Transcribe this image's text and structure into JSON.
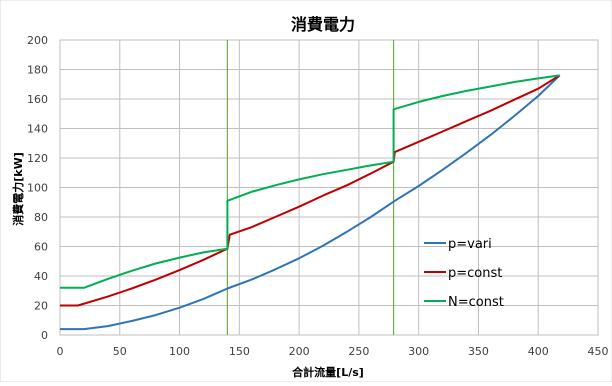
{
  "chart_data": {
    "type": "line",
    "title": "消費電力",
    "xlabel": "合計流量[L/s]",
    "ylabel": "消費電力[kW]",
    "xlim": [
      0,
      450
    ],
    "ylim": [
      0,
      200
    ],
    "xticks": [
      0,
      50,
      100,
      150,
      200,
      250,
      300,
      350,
      400,
      450
    ],
    "yticks": [
      0,
      20,
      40,
      60,
      80,
      100,
      120,
      140,
      160,
      180,
      200
    ],
    "grid": true,
    "legend_position": "right, inside plot",
    "vertical_lines": [
      {
        "x": 140,
        "color": "#70ad47"
      },
      {
        "x": 279,
        "color": "#70ad47"
      }
    ],
    "series": [
      {
        "name": "p=vari",
        "color": "#2e75b6",
        "x": [
          0,
          20,
          40,
          60,
          80,
          100,
          120,
          140,
          160,
          180,
          200,
          220,
          240,
          260,
          280,
          300,
          320,
          340,
          360,
          380,
          400,
          418
        ],
        "y": [
          4,
          4,
          6,
          9.5,
          13.5,
          18.5,
          24.5,
          31.5,
          37.5,
          44.5,
          52,
          60.5,
          70,
          80,
          91,
          101,
          112,
          123.5,
          135.5,
          148.5,
          162,
          176
        ]
      },
      {
        "name": "p=const",
        "color": "#c00000",
        "x": [
          0,
          15,
          15,
          40,
          60,
          80,
          100,
          120,
          140,
          140,
          142,
          160,
          180,
          200,
          220,
          240,
          260,
          279,
          279,
          280,
          300,
          320,
          340,
          360,
          380,
          400,
          418
        ],
        "y": [
          20,
          20,
          20,
          26,
          31.5,
          37.5,
          44,
          51,
          58.5,
          58.5,
          68,
          73,
          80,
          87,
          94.5,
          101.5,
          109.5,
          117.5,
          117.5,
          124,
          131,
          138,
          145,
          152,
          159.5,
          167,
          176
        ]
      },
      {
        "name": "N=const",
        "color": "#00b050",
        "x": [
          0,
          20,
          40,
          60,
          80,
          100,
          120,
          140,
          140,
          160,
          180,
          200,
          220,
          240,
          260,
          279,
          279,
          300,
          320,
          340,
          360,
          380,
          400,
          418
        ],
        "y": [
          32,
          32,
          38,
          43.5,
          48.5,
          52.5,
          56,
          58.5,
          91,
          97,
          101.5,
          105.5,
          109,
          112,
          115,
          117.5,
          153,
          158,
          162,
          165.5,
          168.5,
          171.5,
          174,
          176
        ]
      }
    ]
  }
}
